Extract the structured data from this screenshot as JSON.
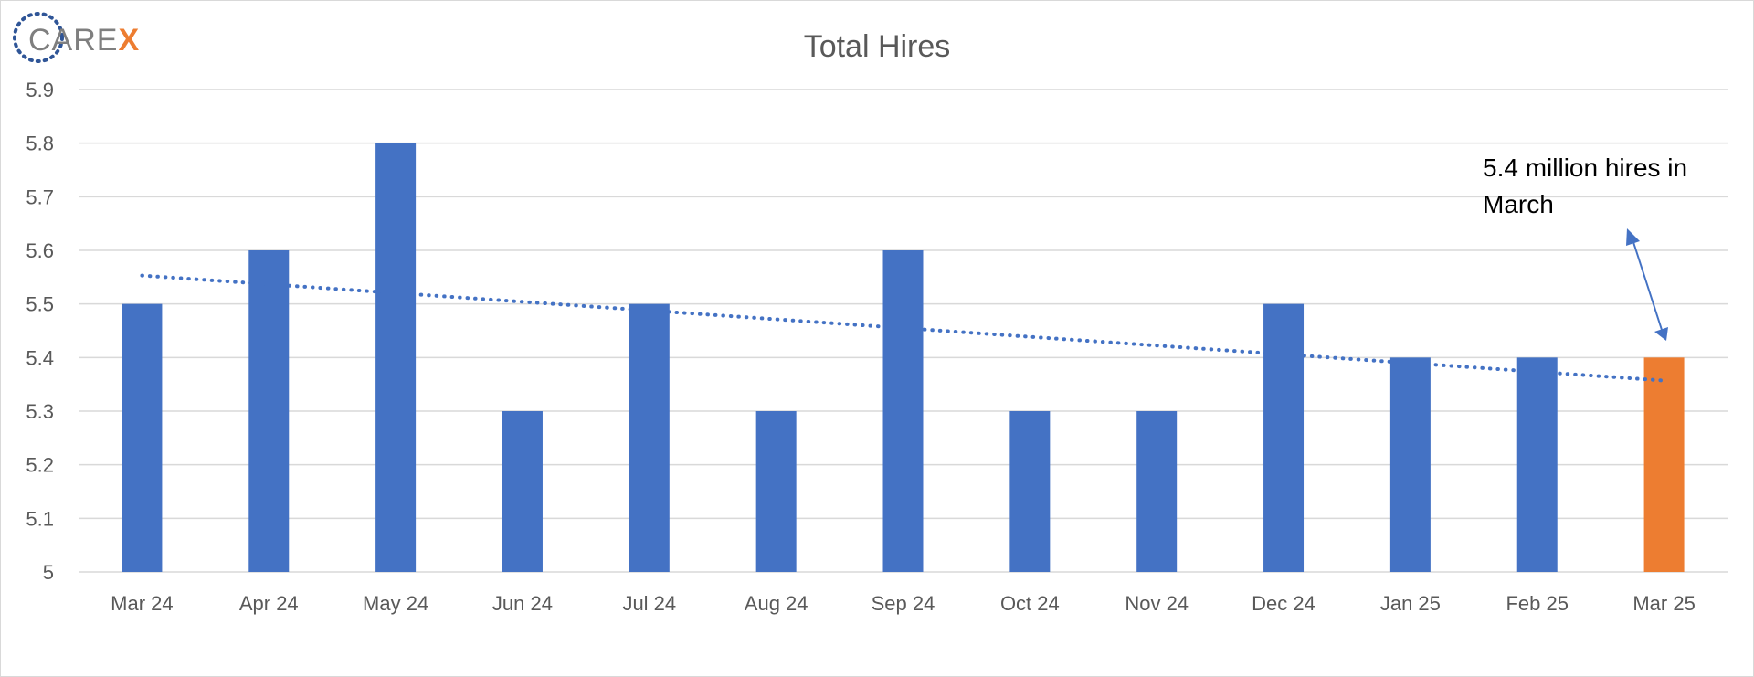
{
  "logo": {
    "text_main": "CARE",
    "text_accent": "X",
    "color_main": "#7f7f7f",
    "color_accent": "#ed7d31",
    "ring_color": "#2f5597"
  },
  "chart_data": {
    "type": "bar",
    "title": "Total Hires",
    "categories": [
      "Mar 24",
      "Apr 24",
      "May 24",
      "Jun 24",
      "Jul 24",
      "Aug 24",
      "Sep 24",
      "Oct 24",
      "Nov 24",
      "Dec 24",
      "Jan 25",
      "Feb 25",
      "Mar 25"
    ],
    "values": [
      5.5,
      5.6,
      5.8,
      5.3,
      5.5,
      5.3,
      5.6,
      5.3,
      5.3,
      5.5,
      5.4,
      5.4,
      5.4
    ],
    "ylim": [
      5.0,
      5.9
    ],
    "yticks": [
      "5",
      "5.1",
      "5.2",
      "5.3",
      "5.4",
      "5.5",
      "5.6",
      "5.7",
      "5.8",
      "5.9"
    ],
    "grid": true,
    "bar_color": "#4472c4",
    "highlight_color": "#ed7d31",
    "highlight_index": 12,
    "trendline": {
      "type": "linear",
      "style": "dotted",
      "color": "#4472c4",
      "start_value": 5.553,
      "end_value": 5.357
    },
    "annotation": {
      "lines": [
        "5.4 million hires in",
        "March"
      ],
      "target_category": "Mar 25"
    }
  }
}
